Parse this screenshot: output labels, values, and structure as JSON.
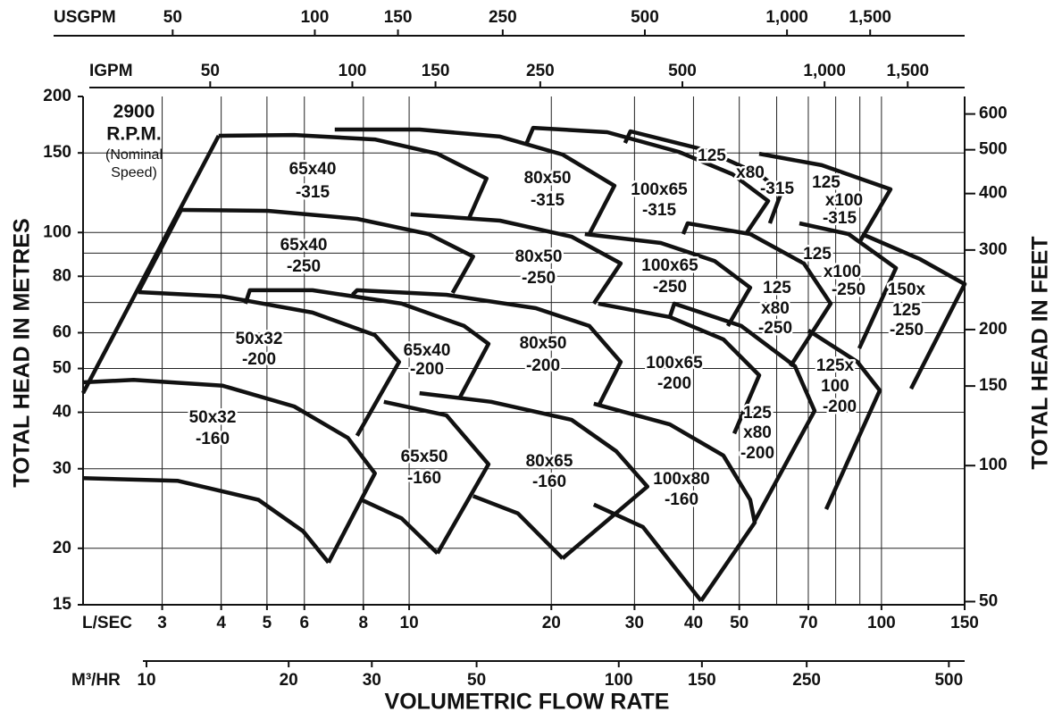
{
  "chart_data": {
    "type": "pump-curves",
    "annotation": [
      "2900",
      "R.P.M.",
      "(Nominal",
      "Speed)"
    ],
    "ylabel": "TOTAL HEAD IN METRES",
    "y2label": "TOTAL HEAD IN FEET",
    "xlabel": "VOLUMETRIC FLOW RATE",
    "x_unit": "L/SEC",
    "xscale": "log",
    "yscale": "log",
    "xlim": [
      2.04,
      150
    ],
    "xticks": [
      3,
      4,
      5,
      6,
      8,
      10,
      20,
      30,
      40,
      50,
      70,
      100,
      150
    ],
    "xgrid": [
      3,
      4,
      5,
      6,
      8,
      10,
      20,
      30,
      40,
      50,
      60,
      70,
      80,
      90,
      100
    ],
    "ylim": [
      15,
      200
    ],
    "yticks": [
      15,
      20,
      30,
      40,
      50,
      60,
      80,
      100,
      150,
      200
    ],
    "ygrid": [
      20,
      30,
      40,
      50,
      60,
      70,
      80,
      90,
      100,
      150
    ],
    "y2lim": [
      49.2,
      656
    ],
    "y2ticks": [
      50,
      100,
      150,
      200,
      300,
      400,
      500,
      600
    ],
    "flow_axes": [
      {
        "name": "USGPM",
        "lim": [
          32.3,
          2378
        ],
        "ticks": [
          50,
          100,
          150,
          250,
          500,
          {
            "value": 1000,
            "label": "1,000"
          },
          {
            "value": 1500,
            "label": "1,500"
          }
        ]
      },
      {
        "name": "IGPM",
        "lim": [
          26.9,
          1980
        ],
        "ticks": [
          50,
          100,
          150,
          250,
          500,
          {
            "value": 1000,
            "label": "1,000"
          },
          {
            "value": 1500,
            "label": "1,500"
          }
        ]
      },
      {
        "name": "M³/HR",
        "lim": [
          7.34,
          540
        ],
        "ticks": [
          10,
          20,
          30,
          50,
          100,
          150,
          250,
          500
        ]
      }
    ],
    "color": "#111111",
    "curves": [
      {
        "x": [
          2.04,
          3.95
        ],
        "y": [
          44.1,
          163.7
        ]
      },
      {
        "x": [
          3.95,
          5.71,
          8.46,
          11.48,
          14.58,
          13.37
        ],
        "y": [
          163.7,
          164.4,
          160.7,
          149.4,
          131.6,
          107.2
        ]
      },
      {
        "x": [
          6.96,
          10.52,
          15.57,
          21.12,
          27.2,
          24.07
        ],
        "y": [
          169,
          169,
          163,
          148.8,
          126.9,
          99.2
        ]
      },
      {
        "x": [
          17.74,
          18.3,
          26.27,
          37.22,
          48.35,
          57.54,
          51.61
        ],
        "y": [
          157.8,
          170.5,
          166.7,
          150.8,
          134.6,
          117.4,
          99.2
        ]
      },
      {
        "x": [
          28.65,
          29.41,
          42.42,
          55.1,
          61.42,
          58.04
        ],
        "y": [
          157.8,
          167.5,
          152.2,
          134.6,
          122.9,
          104.8
        ]
      },
      {
        "x": [
          55.1,
          74.75,
          104.5,
          90.13
        ],
        "y": [
          149.4,
          140.9,
          124.6,
          95.7
        ]
      },
      {
        "x": [
          2.67,
          3.29
        ],
        "y": [
          73.8,
          112.2
        ]
      },
      {
        "x": [
          3.29,
          5.02,
          7.76,
          10.99,
          13.66,
          12.36
        ],
        "y": [
          112.2,
          111.7,
          107.2,
          99.2,
          88.5,
          73.5
        ]
      },
      {
        "x": [
          10.07,
          15.57,
          22.06,
          28.05,
          24.6
        ],
        "y": [
          109.7,
          106.2,
          97.9,
          85.4,
          69.6
        ]
      },
      {
        "x": [
          23.55,
          34.12,
          44.31,
          52.74,
          47.3
        ],
        "y": [
          99.2,
          94.8,
          86.5,
          75.5,
          62.1
        ]
      },
      {
        "x": [
          38.04,
          38.88,
          52.74,
          68.51,
          78.07,
          64.17
        ],
        "y": [
          99.2,
          104.8,
          99.2,
          85.4,
          69.6,
          50.6
        ]
      },
      {
        "x": [
          67.03,
          85.18,
          107.3,
          89.75
        ],
        "y": [
          104.8,
          99.2,
          83.4,
          55.4
        ]
      },
      {
        "x": [
          90.92,
          120.7,
          150,
          115.5
        ],
        "y": [
          99.2,
          87.3,
          76.9,
          45.1
        ]
      },
      {
        "x": [
          2.67,
          4.03,
          6.24,
          8.46,
          9.52,
          7.76
        ],
        "y": [
          73.8,
          72.2,
          66.5,
          59.3,
          51.7,
          35.5
        ]
      },
      {
        "x": [
          4.5,
          4.6,
          6.24,
          9.64,
          13.08,
          14.72,
          12.8
        ],
        "y": [
          69.6,
          74.5,
          74.5,
          69.6,
          62.1,
          56.7,
          43.1
        ]
      },
      {
        "x": [
          7.59,
          7.76,
          11.99,
          18.54,
          24.07,
          28.05,
          25.14
        ],
        "y": [
          72.8,
          74.5,
          72.8,
          68,
          62.1,
          51.7,
          41.2
        ]
      },
      {
        "x": [
          25.14,
          35.64,
          46.28,
          55.1,
          48.77
        ],
        "y": [
          69.6,
          65,
          58,
          48.3,
          35.9
        ]
      },
      {
        "x": [
          35.64,
          36.41,
          50.5,
          65.59,
          72.19,
          53.91
        ],
        "y": [
          65,
          69.6,
          62.1,
          50.6,
          40.3,
          23
        ]
      },
      {
        "x": [
          70.03,
          88.97,
          99.2,
          76.38
        ],
        "y": [
          60.7,
          51.7,
          44.7,
          24.4
        ]
      },
      {
        "x": [
          2.04,
          2.61,
          4.03,
          5.71,
          7.42,
          8.46,
          6.75
        ],
        "y": [
          46.6,
          47.2,
          45.8,
          41.2,
          35.1,
          29.3,
          18.6
        ]
      },
      {
        "x": [
          8.84,
          11.99,
          14.72,
          11.48
        ],
        "y": [
          42.2,
          39.4,
          30.7,
          19.5
        ]
      },
      {
        "x": [
          10.52,
          14.91,
          22.06,
          27.44,
          31.95,
          21.12
        ],
        "y": [
          44.1,
          42.2,
          38.5,
          32.8,
          27.4,
          19
        ]
      },
      {
        "x": [
          24.6,
          35.64,
          46.28,
          52.74,
          53.91,
          41.5
        ],
        "y": [
          41.8,
          37.6,
          32.1,
          25.6,
          22.8,
          15.3
        ]
      },
      {
        "x": [
          2.04,
          3.24,
          4.8,
          5.97,
          6.75
        ],
        "y": [
          28.6,
          28.2,
          25.6,
          21.8,
          18.6
        ]
      },
      {
        "x": [
          7.93,
          9.64,
          11.48
        ],
        "y": [
          25.6,
          23.3,
          19.5
        ]
      },
      {
        "x": [
          13.66,
          16.99,
          21.12
        ],
        "y": [
          26.1,
          23.9,
          19
        ]
      },
      {
        "x": [
          24.6,
          31.26,
          41.5
        ],
        "y": [
          25,
          22.3,
          15.3
        ]
      }
    ],
    "tiles": [
      {
        "label": [
          "65x40",
          "-315"
        ]
      },
      {
        "label": [
          "80x50",
          "-315"
        ]
      },
      {
        "label": [
          "100x65",
          "-315"
        ]
      },
      {
        "label": [
          "125",
          "x80",
          "-315"
        ]
      },
      {
        "label": [
          "125",
          "x100",
          "-315"
        ]
      },
      {
        "label": [
          "65x40",
          "-250"
        ]
      },
      {
        "label": [
          "80x50",
          "-250"
        ]
      },
      {
        "label": [
          "100x65",
          "-250"
        ]
      },
      {
        "label": [
          "125",
          "x80",
          "-250"
        ]
      },
      {
        "label": [
          "125",
          "x100",
          "-250"
        ]
      },
      {
        "label": [
          "150x",
          "125",
          "-250"
        ]
      },
      {
        "label": [
          "50x32",
          "-200"
        ]
      },
      {
        "label": [
          "65x40",
          "-200"
        ]
      },
      {
        "label": [
          "80x50",
          "-200"
        ]
      },
      {
        "label": [
          "100x65",
          "-200"
        ]
      },
      {
        "label": [
          "125x",
          "100",
          "-200"
        ]
      },
      {
        "label": [
          "125",
          "x80",
          "-200"
        ]
      },
      {
        "label": [
          "50x32",
          "-160"
        ]
      },
      {
        "label": [
          "65x50",
          "-160"
        ]
      },
      {
        "label": [
          "80x65",
          "-160"
        ]
      },
      {
        "label": [
          "100x80",
          "-160"
        ]
      }
    ]
  }
}
